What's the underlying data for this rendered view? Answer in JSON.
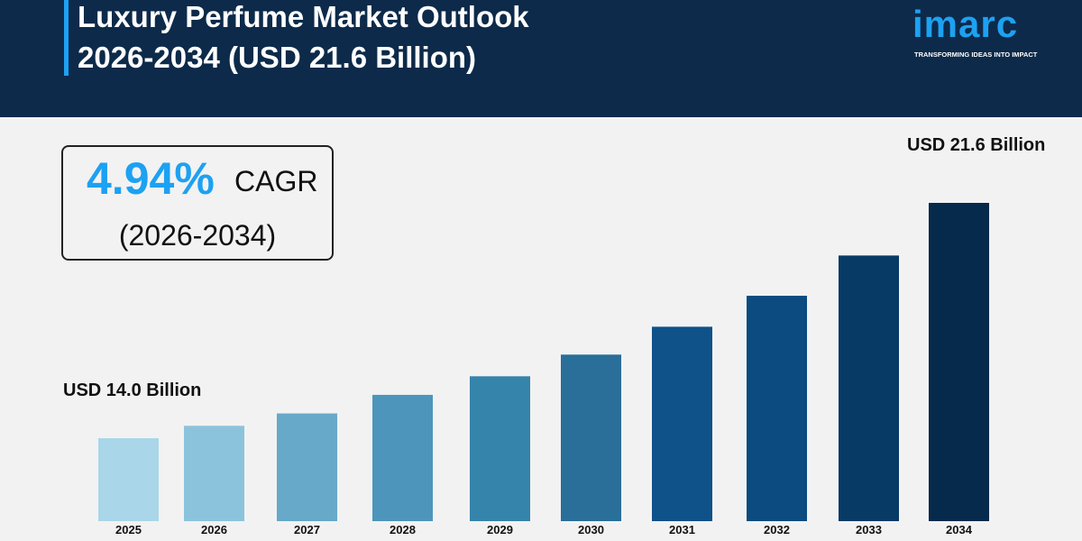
{
  "header": {
    "title_line1": "Luxury Perfume Market Outlook",
    "title_line2": "2026-2034 (USD 21.6 Billion)"
  },
  "logo": {
    "text": "imarc",
    "tagline": "TRANSFORMING IDEAS INTO IMPACT"
  },
  "cagr": {
    "value": "4.94%",
    "label": "CAGR",
    "period": "(2026-2034)"
  },
  "colors": {
    "header_bg": "#0d2a4a",
    "accent": "#1da1f2"
  },
  "chart_data": {
    "type": "bar",
    "categories": [
      "2025",
      "2026",
      "2027",
      "2028",
      "2029",
      "2030",
      "2031",
      "2032",
      "2033",
      "2034"
    ],
    "values": [
      14.0,
      14.4,
      14.8,
      15.4,
      16.0,
      16.7,
      17.6,
      18.6,
      19.9,
      21.6
    ],
    "colors": [
      "#a9d6e8",
      "#8cc3dc",
      "#66a9c9",
      "#4d95bb",
      "#3584ab",
      "#2a6f99",
      "#0f5189",
      "#0b4b80",
      "#083a66",
      "#062a4c"
    ],
    "annotations": {
      "start": "USD 14.0 Billion",
      "end": "USD 21.6 Billion"
    },
    "grid": false
  }
}
